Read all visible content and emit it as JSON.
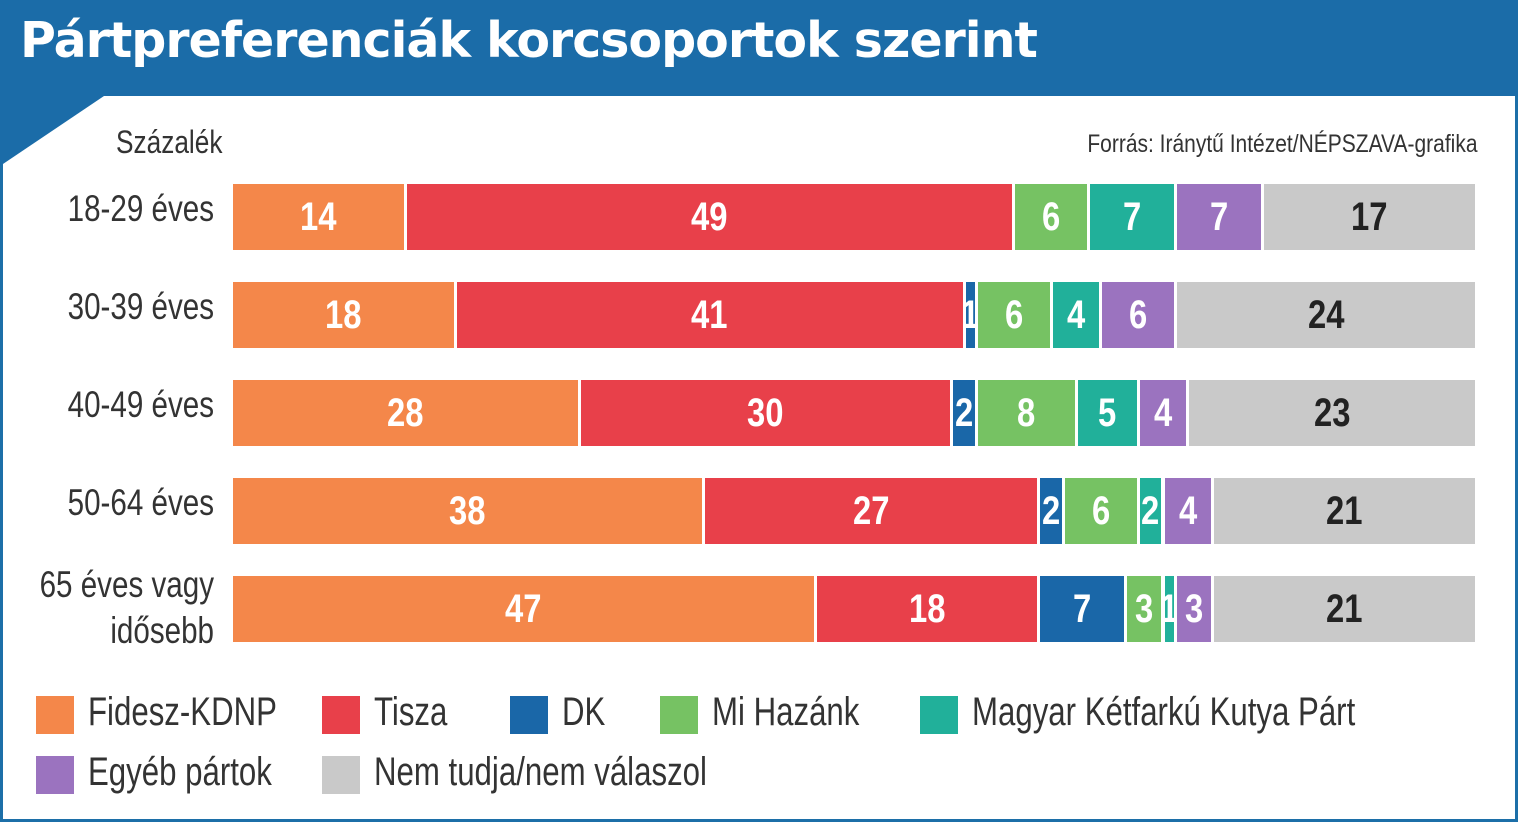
{
  "title": "Pártpreferenciák korcsoportok szerint",
  "unit_label": "Százalék",
  "source": "Forrás: Iránytű Intézet/NÉPSZAVA-grafika",
  "colors": {
    "Fidesz-KDNP": "#f4874a",
    "Tisza": "#e8404a",
    "DK": "#1a67a8",
    "Mi Hazánk": "#76c263",
    "Magyar Kétfarkú Kutya Párt": "#21b09a",
    "Egyéb pártok": "#9b73bf",
    "Nem tudja/nem válaszol": "#c9c9c9"
  },
  "chart_data": {
    "type": "bar",
    "orientation": "horizontal",
    "stacked": true,
    "unit": "%",
    "categories": [
      "18-29 éves",
      "30-39 éves",
      "40-49 éves",
      "50-64 éves",
      "65 éves vagy idősebb"
    ],
    "series": [
      {
        "name": "Fidesz-KDNP",
        "values": [
          14,
          18,
          28,
          38,
          47
        ]
      },
      {
        "name": "Tisza",
        "values": [
          49,
          41,
          30,
          27,
          18
        ]
      },
      {
        "name": "DK",
        "values": [
          0,
          1,
          2,
          2,
          7
        ]
      },
      {
        "name": "Mi Hazánk",
        "values": [
          6,
          6,
          8,
          6,
          3
        ]
      },
      {
        "name": "Magyar Kétfarkú Kutya Párt",
        "values": [
          7,
          4,
          5,
          2,
          1
        ]
      },
      {
        "name": "Egyéb pártok",
        "values": [
          7,
          6,
          4,
          4,
          3
        ]
      },
      {
        "name": "Nem tudja/nem válaszol",
        "values": [
          17,
          24,
          23,
          21,
          21
        ]
      }
    ],
    "legend_position": "bottom"
  }
}
